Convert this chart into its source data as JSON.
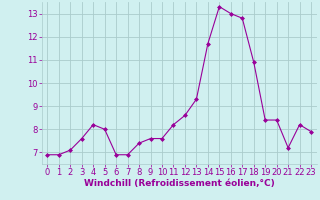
{
  "x": [
    0,
    1,
    2,
    3,
    4,
    5,
    6,
    7,
    8,
    9,
    10,
    11,
    12,
    13,
    14,
    15,
    16,
    17,
    18,
    19,
    20,
    21,
    22,
    23
  ],
  "y": [
    6.9,
    6.9,
    7.1,
    7.6,
    8.2,
    8.0,
    6.9,
    6.9,
    7.4,
    7.6,
    7.6,
    8.2,
    8.6,
    9.3,
    11.7,
    13.3,
    13.0,
    12.8,
    10.9,
    8.4,
    8.4,
    7.2,
    8.2,
    7.9
  ],
  "line_color": "#990099",
  "marker": "D",
  "marker_size": 2,
  "background_color": "#d0f0f0",
  "grid_color": "#aacccc",
  "xlabel": "Windchill (Refroidissement éolien,°C)",
  "xlabel_color": "#990099",
  "tick_color": "#990099",
  "ylim": [
    6.5,
    13.5
  ],
  "xlim": [
    -0.5,
    23.5
  ],
  "yticks": [
    7,
    8,
    9,
    10,
    11,
    12,
    13
  ],
  "xticks": [
    0,
    1,
    2,
    3,
    4,
    5,
    6,
    7,
    8,
    9,
    10,
    11,
    12,
    13,
    14,
    15,
    16,
    17,
    18,
    19,
    20,
    21,
    22,
    23
  ],
  "tick_fontsize": 6,
  "xlabel_fontsize": 6.5,
  "linewidth": 0.8
}
